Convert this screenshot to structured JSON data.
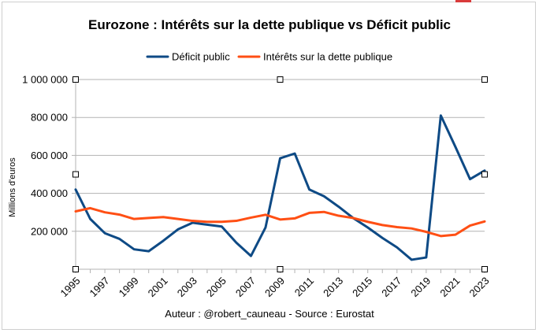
{
  "chart_data": {
    "type": "line",
    "title": "Eurozone : Intérêts sur la dette publique vs Déficit public",
    "ylabel": "Millions d'euros",
    "xlabel": "",
    "caption": "Auteur : @robert_cauneau - Source : Eurostat",
    "ylim": [
      0,
      1000000
    ],
    "y_ticks": [
      200000,
      400000,
      600000,
      800000,
      1000000
    ],
    "y_tick_labels": [
      "200 000",
      "400 000",
      "600 000",
      "800 000",
      "1 000 000"
    ],
    "x_tick_labels": [
      "1995",
      "1997",
      "1999",
      "2001",
      "2003",
      "2005",
      "2007",
      "2009",
      "2011",
      "2013",
      "2015",
      "2017",
      "2019",
      "2021",
      "2023"
    ],
    "x": [
      1995,
      1996,
      1997,
      1998,
      1999,
      2000,
      2001,
      2002,
      2003,
      2004,
      2005,
      2006,
      2007,
      2008,
      2009,
      2010,
      2011,
      2012,
      2013,
      2014,
      2015,
      2016,
      2017,
      2018,
      2019,
      2020,
      2021,
      2022,
      2023
    ],
    "grid": "horizontal",
    "legend_position": "top",
    "series": [
      {
        "name": "Déficit public",
        "color": "#0e4a85",
        "values": [
          420000,
          265000,
          190000,
          160000,
          105000,
          95000,
          150000,
          210000,
          245000,
          235000,
          225000,
          140000,
          70000,
          220000,
          585000,
          610000,
          420000,
          385000,
          330000,
          270000,
          220000,
          165000,
          115000,
          50000,
          62000,
          810000,
          645000,
          475000,
          520000
        ]
      },
      {
        "name": "Intérêts sur la dette publique",
        "color": "#ff4f14",
        "values": [
          305000,
          322000,
          300000,
          288000,
          265000,
          270000,
          275000,
          265000,
          255000,
          250000,
          250000,
          255000,
          272000,
          287000,
          262000,
          268000,
          297000,
          302000,
          282000,
          270000,
          250000,
          233000,
          222000,
          215000,
          197000,
          175000,
          182000,
          230000,
          252000
        ]
      }
    ]
  }
}
